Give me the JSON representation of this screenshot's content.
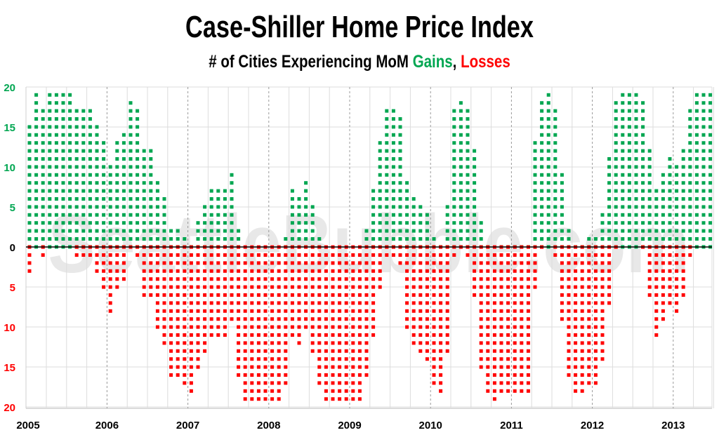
{
  "chart_data": {
    "type": "bar",
    "title": "Case-Shiller Home Price Index",
    "subtitle": {
      "prefix": "# of Cities Experiencing MoM ",
      "gains": "Gains",
      "sep": ", ",
      "losses": "Losses"
    },
    "watermark": "SeattleBubble.com",
    "x_start": "2005-01",
    "x_end": "2013-06",
    "x_ticks": [
      "2005",
      "2006",
      "2007",
      "2008",
      "2009",
      "2010",
      "2011",
      "2012",
      "2013"
    ],
    "y_ticks_gains": [
      "20",
      "15",
      "10",
      "5"
    ],
    "y_tick_zero": "0",
    "y_ticks_losses": [
      "5",
      "10",
      "15",
      "20"
    ],
    "ylim": [
      -20,
      20
    ],
    "grid": true,
    "series": [
      {
        "name": "Gains",
        "color": "#00a651",
        "values": [
          16,
          20,
          18,
          20,
          20,
          20,
          20,
          18,
          18,
          18,
          16,
          14,
          11,
          14,
          15,
          19,
          18,
          13,
          13,
          9,
          7,
          3,
          3,
          2,
          1,
          4,
          6,
          8,
          8,
          8,
          10,
          3,
          0,
          0,
          0,
          0,
          0,
          0,
          2,
          8,
          7,
          9,
          6,
          2,
          0,
          0,
          0,
          0,
          0,
          0,
          3,
          8,
          14,
          18,
          18,
          17,
          9,
          7,
          6,
          5,
          2,
          1,
          6,
          18,
          19,
          18,
          13,
          4,
          1,
          0,
          1,
          1,
          1,
          1,
          1,
          14,
          19,
          20,
          18,
          10,
          3,
          1,
          1,
          2,
          2,
          5,
          12,
          19,
          20,
          20,
          20,
          19,
          13,
          8,
          10,
          12,
          11,
          13,
          18,
          20,
          20,
          20
        ]
      },
      {
        "name": "Losses",
        "color": "#ff0000",
        "values": [
          4,
          0,
          2,
          0,
          0,
          0,
          0,
          2,
          2,
          2,
          4,
          6,
          9,
          6,
          5,
          1,
          2,
          7,
          7,
          11,
          13,
          17,
          17,
          18,
          19,
          16,
          14,
          12,
          12,
          12,
          10,
          17,
          20,
          20,
          20,
          20,
          20,
          20,
          18,
          12,
          13,
          11,
          14,
          18,
          20,
          20,
          20,
          20,
          20,
          20,
          17,
          12,
          6,
          2,
          2,
          3,
          11,
          13,
          14,
          15,
          18,
          19,
          14,
          2,
          1,
          2,
          7,
          16,
          19,
          20,
          19,
          19,
          19,
          19,
          19,
          6,
          1,
          0,
          2,
          10,
          17,
          19,
          19,
          18,
          18,
          15,
          8,
          1,
          0,
          0,
          0,
          1,
          7,
          12,
          10,
          8,
          9,
          7,
          2,
          0,
          0,
          0
        ]
      }
    ]
  }
}
